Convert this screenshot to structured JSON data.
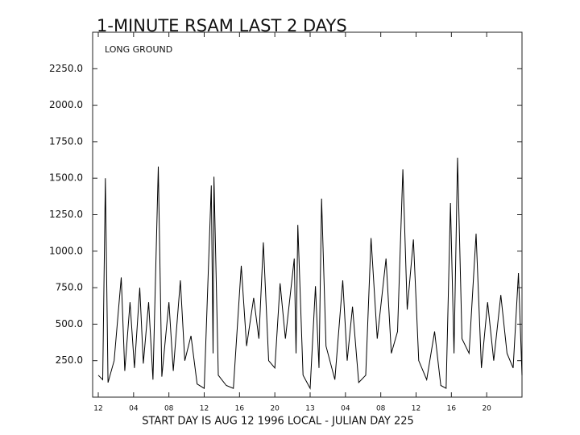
{
  "chart_data": {
    "type": "line",
    "title": "1-MINUTE RSAM LAST 2 DAYS",
    "annotation": "LONG GROUND",
    "x_label": "START DAY IS AUG 12 1996 LOCAL - JULIAN DAY 225",
    "color": "#000000",
    "x": [
      0,
      0.5,
      0.8,
      1.1,
      1.8,
      2.6,
      3.0,
      3.6,
      4.1,
      4.7,
      5.1,
      5.7,
      6.2,
      6.8,
      7.2,
      8.0,
      8.5,
      9.3,
      9.8,
      10.5,
      11.2,
      12.0,
      12.8,
      13.0,
      13.1,
      13.6,
      14.5,
      15.3,
      16.2,
      16.8,
      17.6,
      18.2,
      18.7,
      19.3,
      20.0,
      20.6,
      21.2,
      22.2,
      22.4,
      22.6,
      23.2,
      24.0,
      24.6,
      25.0,
      25.3,
      25.8,
      26.8,
      27.7,
      28.2,
      28.8,
      29.5,
      30.3,
      30.9,
      31.6,
      32.6,
      33.2,
      33.9,
      34.5,
      35.0,
      35.7,
      36.3,
      37.2,
      38.1,
      38.8,
      39.4,
      39.9,
      40.3,
      40.7,
      41.2,
      42.0,
      42.8,
      43.4,
      44.1,
      44.8,
      45.6,
      46.3,
      47.0,
      47.6,
      48
    ],
    "values": [
      150,
      120,
      1500,
      100,
      250,
      820,
      180,
      650,
      200,
      750,
      230,
      650,
      120,
      1580,
      140,
      650,
      180,
      800,
      250,
      420,
      90,
      60,
      1450,
      300,
      1510,
      150,
      80,
      60,
      900,
      350,
      680,
      400,
      1060,
      250,
      200,
      780,
      400,
      950,
      300,
      1180,
      150,
      60,
      760,
      200,
      1360,
      350,
      120,
      800,
      250,
      620,
      100,
      150,
      1090,
      400,
      950,
      300,
      450,
      1560,
      600,
      1080,
      250,
      120,
      450,
      80,
      60,
      1330,
      300,
      1640,
      400,
      300,
      1120,
      200,
      650,
      250,
      700,
      300,
      200,
      850,
      150
    ],
    "xlim": [
      0,
      48
    ],
    "xticks": [
      {
        "value": 0,
        "label": "12"
      },
      {
        "value": 4,
        "label": "04"
      },
      {
        "value": 8,
        "label": "08"
      },
      {
        "value": 12,
        "label": "12"
      },
      {
        "value": 16,
        "label": "16"
      },
      {
        "value": 20,
        "label": "20"
      },
      {
        "value": 24,
        "label": "13"
      },
      {
        "value": 28,
        "label": "04"
      },
      {
        "value": 32,
        "label": "08"
      },
      {
        "value": 36,
        "label": "12"
      },
      {
        "value": 40,
        "label": "16"
      },
      {
        "value": 44,
        "label": "20"
      }
    ],
    "ylim": [
      0,
      2500
    ],
    "yticks": [
      {
        "value": 250,
        "label": "250.0"
      },
      {
        "value": 500,
        "label": "500.0"
      },
      {
        "value": 750,
        "label": "750.0"
      },
      {
        "value": 1000,
        "label": "1000.0"
      },
      {
        "value": 1250,
        "label": "1250.0"
      },
      {
        "value": 1500,
        "label": "1500.0"
      },
      {
        "value": 1750,
        "label": "1750.0"
      },
      {
        "value": 2000,
        "label": "2000.0"
      },
      {
        "value": 2250,
        "label": "2250.0"
      }
    ]
  }
}
